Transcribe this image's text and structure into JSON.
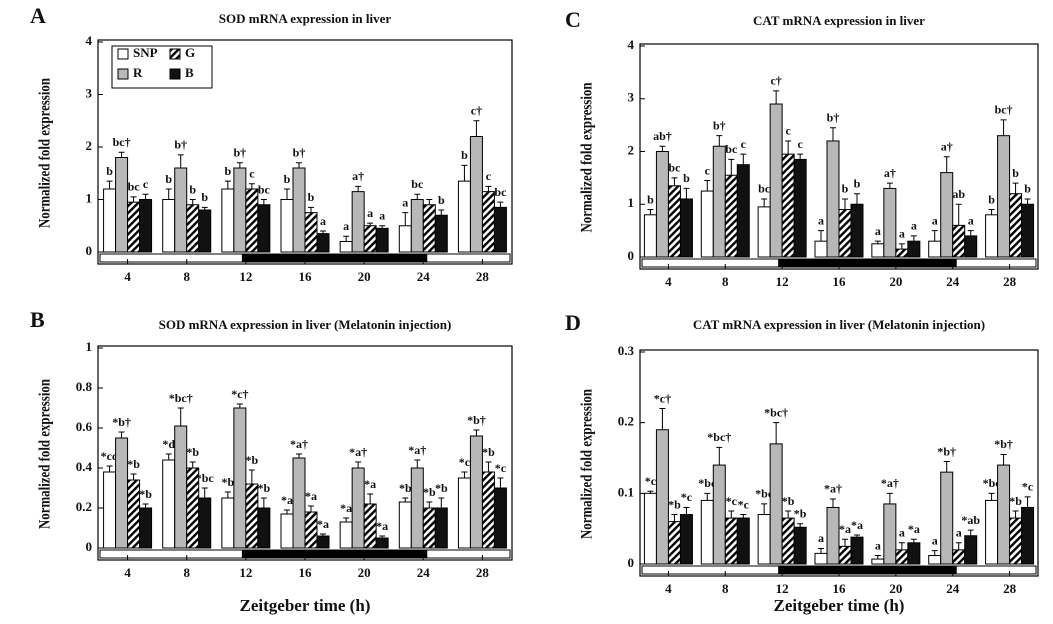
{
  "chart_data": [
    {
      "type": "bar",
      "panel": "A",
      "title": "SOD mRNA expression in liver",
      "ylabel": "Normalized fold expression",
      "categories": [
        "4",
        "8",
        "12",
        "16",
        "20",
        "24",
        "28"
      ],
      "ylim": [
        0,
        4
      ],
      "yticks": [
        0,
        1,
        2,
        3,
        4
      ],
      "legend": "upper left",
      "series": [
        {
          "name": "SNP",
          "color": "#ffffff",
          "values": [
            1.2,
            1.0,
            1.2,
            1.0,
            0.2,
            0.5,
            1.35
          ],
          "errors": [
            0.15,
            0.2,
            0.15,
            0.2,
            0.1,
            0.25,
            0.3
          ],
          "letters": [
            "b",
            "b",
            "b",
            "b",
            "a",
            "a",
            "b"
          ]
        },
        {
          "name": "R",
          "color": "#b8b8b8",
          "values": [
            1.8,
            1.6,
            1.6,
            1.6,
            1.15,
            1.0,
            2.2
          ],
          "errors": [
            0.1,
            0.25,
            0.1,
            0.1,
            0.1,
            0.1,
            0.3
          ],
          "letters": [
            "bc†",
            "b†",
            "b†",
            "b†",
            "a†",
            "bc",
            "c†"
          ]
        },
        {
          "name": "G",
          "color": "#000000",
          "hatch": true,
          "values": [
            0.95,
            0.9,
            1.2,
            0.75,
            0.5,
            0.9,
            1.15
          ],
          "errors": [
            0.1,
            0.1,
            0.1,
            0.1,
            0.05,
            0.1,
            0.1
          ],
          "letters": [
            "bc",
            "b",
            "c",
            "b",
            "a",
            null,
            "c"
          ]
        },
        {
          "name": "B",
          "color": "#111111",
          "values": [
            1.0,
            0.8,
            0.9,
            0.35,
            0.45,
            0.7,
            0.85
          ],
          "errors": [
            0.1,
            0.05,
            0.1,
            0.05,
            0.05,
            0.1,
            0.1
          ],
          "letters": [
            "c",
            "b",
            "bc",
            "a",
            "a",
            "b",
            "bc"
          ]
        }
      ]
    },
    {
      "type": "bar",
      "panel": "B",
      "title": "SOD mRNA expression in liver (Melatonin injection)",
      "ylabel": "Normalized fold expression",
      "xlabel": "Zeitgeber time (h)",
      "categories": [
        "4",
        "8",
        "12",
        "16",
        "20",
        "24",
        "28"
      ],
      "ylim": [
        0,
        1
      ],
      "yticks": [
        0,
        0.2,
        0.4,
        0.6,
        0.8,
        1
      ],
      "series": [
        {
          "color": "#ffffff",
          "values": [
            0.38,
            0.44,
            0.25,
            0.17,
            0.13,
            0.23,
            0.35
          ],
          "errors": [
            0.03,
            0.03,
            0.03,
            0.02,
            0.02,
            0.02,
            0.03
          ],
          "letters": [
            "*cd",
            "*d",
            "*b",
            "*a",
            "*a",
            "*b",
            "*c"
          ]
        },
        {
          "color": "#b8b8b8",
          "values": [
            0.55,
            0.61,
            0.7,
            0.45,
            0.4,
            0.4,
            0.56
          ],
          "errors": [
            0.03,
            0.09,
            0.02,
            0.02,
            0.03,
            0.04,
            0.03
          ],
          "letters": [
            "*b†",
            "*bc†",
            "*c†",
            "*a†",
            "*a†",
            "*a†",
            "*b†"
          ]
        },
        {
          "color": "#000000",
          "hatch": true,
          "values": [
            0.34,
            0.4,
            0.32,
            0.18,
            0.22,
            0.2,
            0.38
          ],
          "errors": [
            0.03,
            0.03,
            0.07,
            0.03,
            0.05,
            0.03,
            0.05
          ],
          "letters": [
            "*b",
            "*b",
            "*b",
            "*a",
            "*a",
            "*b",
            "*b"
          ]
        },
        {
          "color": "#111111",
          "values": [
            0.2,
            0.25,
            0.2,
            0.06,
            0.05,
            0.2,
            0.3
          ],
          "errors": [
            0.02,
            0.05,
            0.05,
            0.01,
            0.01,
            0.05,
            0.05
          ],
          "letters": [
            "*b",
            "*bc",
            "*b",
            "*a",
            "*a",
            "*b",
            "*c"
          ]
        }
      ]
    },
    {
      "type": "bar",
      "panel": "C",
      "title": "CAT mRNA expression in liver",
      "ylabel": "Normalized fold expression",
      "categories": [
        "4",
        "8",
        "12",
        "16",
        "20",
        "24",
        "28"
      ],
      "ylim": [
        0,
        4
      ],
      "yticks": [
        0,
        1,
        2,
        3,
        4
      ],
      "series": [
        {
          "color": "#ffffff",
          "values": [
            0.8,
            1.25,
            0.95,
            0.3,
            0.25,
            0.3,
            0.8
          ],
          "errors": [
            0.1,
            0.2,
            0.15,
            0.2,
            0.05,
            0.2,
            0.1
          ],
          "letters": [
            "b",
            "c",
            "bc",
            "a",
            "a",
            "a",
            "b"
          ]
        },
        {
          "color": "#b8b8b8",
          "values": [
            2.0,
            2.1,
            2.9,
            2.2,
            1.3,
            1.6,
            2.3
          ],
          "errors": [
            0.1,
            0.2,
            0.25,
            0.25,
            0.1,
            0.3,
            0.3
          ],
          "letters": [
            "ab†",
            "b†",
            "c†",
            "b†",
            "a†",
            "a†",
            "bc†"
          ]
        },
        {
          "color": "#000000",
          "hatch": true,
          "values": [
            1.35,
            1.55,
            1.95,
            0.9,
            0.15,
            0.6,
            1.2
          ],
          "errors": [
            0.15,
            0.3,
            0.25,
            0.2,
            0.1,
            0.4,
            0.2
          ],
          "letters": [
            "bc",
            "bc",
            "c",
            "b",
            "a",
            "ab",
            "b"
          ]
        },
        {
          "color": "#111111",
          "values": [
            1.1,
            1.75,
            1.85,
            1.0,
            0.3,
            0.4,
            1.0
          ],
          "errors": [
            0.2,
            0.2,
            0.1,
            0.2,
            0.1,
            0.1,
            0.1
          ],
          "letters": [
            "b",
            "c",
            "c",
            "b",
            "a",
            "a",
            "b"
          ]
        }
      ]
    },
    {
      "type": "bar",
      "panel": "D",
      "title": "CAT mRNA expression in liver (Melatonin injection)",
      "ylabel": "Normalized fold expression",
      "xlabel": "Zeitgeber time (h)",
      "categories": [
        "4",
        "8",
        "12",
        "16",
        "20",
        "24",
        "28"
      ],
      "ylim": [
        0,
        0.3
      ],
      "yticks": [
        0,
        0.1,
        0.2,
        0.3
      ],
      "series": [
        {
          "color": "#ffffff",
          "values": [
            0.1,
            0.09,
            0.07,
            0.015,
            0.007,
            0.012,
            0.09
          ],
          "errors": [
            0.003,
            0.01,
            0.015,
            0.007,
            0.005,
            0.007,
            0.01
          ],
          "letters": [
            "*c",
            "*bc",
            "*bc",
            "a",
            "a",
            "a",
            "*bc"
          ]
        },
        {
          "color": "#b8b8b8",
          "values": [
            0.19,
            0.14,
            0.17,
            0.08,
            0.085,
            0.13,
            0.14
          ],
          "errors": [
            0.03,
            0.025,
            0.03,
            0.012,
            0.015,
            0.015,
            0.015
          ],
          "letters": [
            "*c†",
            "*bc†",
            "*bc†",
            "*a†",
            "*a†",
            "*b†",
            "*b†"
          ]
        },
        {
          "color": "#000000",
          "hatch": true,
          "values": [
            0.06,
            0.065,
            0.065,
            0.025,
            0.02,
            0.02,
            0.065
          ],
          "errors": [
            0.01,
            0.01,
            0.01,
            0.01,
            0.01,
            0.01,
            0.01
          ],
          "letters": [
            "*b",
            "*c",
            "*b",
            "*a",
            "a",
            "a",
            "*b"
          ]
        },
        {
          "color": "#111111",
          "values": [
            0.07,
            0.065,
            0.052,
            0.038,
            0.03,
            0.04,
            0.08
          ],
          "errors": [
            0.01,
            0.005,
            0.005,
            0.003,
            0.005,
            0.008,
            0.015
          ],
          "letters": [
            "*c",
            "*c",
            "*b",
            "*a",
            "*a",
            "*ab",
            "*c"
          ]
        }
      ]
    }
  ]
}
